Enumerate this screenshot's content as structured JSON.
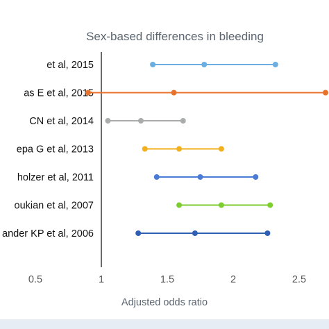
{
  "chart_data": {
    "type": "forest",
    "title": "Sex-based differences in bleeding",
    "xlabel": "Adjusted odds ratio",
    "x_ticks": [
      0.5,
      1,
      1.5,
      2,
      2.5
    ],
    "x_tick_labels": [
      "0.5",
      "1",
      "1.5",
      "2",
      "2.5"
    ],
    "xlim": [
      0.3,
      2.75
    ],
    "reference_line": 1,
    "grid": false,
    "studies": [
      {
        "label": "et al, 2015",
        "low": 1.39,
        "estimate": 1.78,
        "high": 2.32,
        "color": "#6aaee2"
      },
      {
        "label": "as E et al, 2015",
        "low": 0.9,
        "estimate": 1.55,
        "high": 2.7,
        "color": "#e8722a"
      },
      {
        "label": "CN et al, 2014",
        "low": 1.05,
        "estimate": 1.3,
        "high": 1.62,
        "color": "#a9acaa"
      },
      {
        "label": "epa G et al, 2013",
        "low": 1.33,
        "estimate": 1.59,
        "high": 1.91,
        "color": "#f2b01e"
      },
      {
        "label": "holzer et al, 2011",
        "low": 1.42,
        "estimate": 1.75,
        "high": 2.17,
        "color": "#4a7bd6"
      },
      {
        "label": "oukian et al, 2007",
        "low": 1.59,
        "estimate": 1.91,
        "high": 2.28,
        "color": "#7ccd2d"
      },
      {
        "label": "ander KP et al, 2006",
        "low": 1.28,
        "estimate": 1.71,
        "high": 2.26,
        "color": "#2f5fb3"
      }
    ]
  }
}
